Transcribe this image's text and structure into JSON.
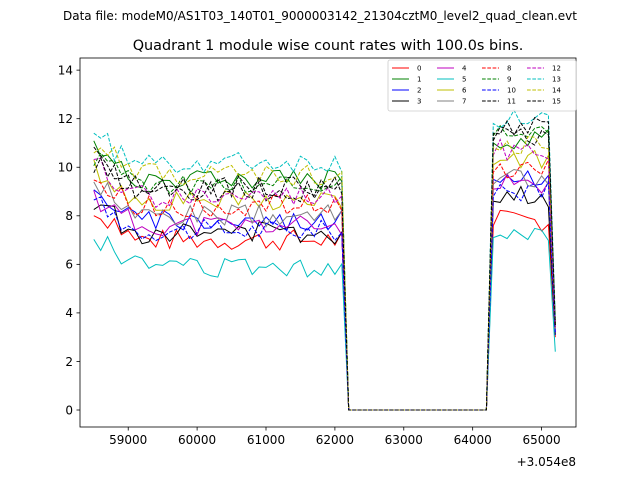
{
  "figure": {
    "suptitle": "Data file: modeM0/AS1T03_140T01_9000003142_21304cztM0_level2_quad_clean.evt",
    "title": "Quadrant 1 module wise count rates with 100.0s bins.",
    "offset_label": "+3.054e8"
  },
  "chart_data": {
    "type": "line",
    "title": "Quadrant 1 module wise count rates with 100.0s bins.",
    "xlabel": "",
    "ylabel": "",
    "x_offset": 305400000,
    "xlim": [
      58300,
      65500
    ],
    "ylim": [
      -0.7,
      14.5
    ],
    "xticks": [
      59000,
      60000,
      61000,
      62000,
      63000,
      64000,
      65000
    ],
    "yticks": [
      0,
      2,
      4,
      6,
      8,
      10,
      12,
      14
    ],
    "xtick_labels": [
      "59000",
      "60000",
      "61000",
      "62000",
      "63000",
      "64000",
      "65000"
    ],
    "ytick_labels": [
      "0",
      "2",
      "4",
      "6",
      "8",
      "10",
      "12",
      "14"
    ],
    "grid": false,
    "legend_position": "top-right",
    "legend_columns": 4,
    "segments": [
      {
        "x_start": 58500,
        "x_step": 100,
        "count": 38
      },
      {
        "x_start": 62200,
        "x_step": 100,
        "count": 21
      },
      {
        "x_start": 64300,
        "x_step": 100,
        "count": 10
      }
    ],
    "series": [
      {
        "name": "0",
        "color": "#ff0000",
        "dash": "solid",
        "baseline": 7.0,
        "late": 7.8,
        "final": 3.0
      },
      {
        "name": "1",
        "color": "#008000",
        "dash": "solid",
        "baseline": 9.5,
        "late": 11.2,
        "final": 3.5
      },
      {
        "name": "2",
        "color": "#0000ff",
        "dash": "solid",
        "baseline": 7.8,
        "late": 9.7,
        "final": 3.2
      },
      {
        "name": "3",
        "color": "#000000",
        "dash": "solid",
        "baseline": 7.3,
        "late": 8.8,
        "final": 3.1
      },
      {
        "name": "4",
        "color": "#bf00bf",
        "dash": "solid",
        "baseline": 7.6,
        "late": 9.3,
        "final": 3.2
      },
      {
        "name": "5",
        "color": "#00bfbf",
        "dash": "solid",
        "baseline": 5.9,
        "late": 7.3,
        "final": 2.4
      },
      {
        "name": "6",
        "color": "#bfbf00",
        "dash": "solid",
        "baseline": 8.6,
        "late": 10.3,
        "final": 3.5
      },
      {
        "name": "7",
        "color": "#808080",
        "dash": "solid",
        "baseline": 8.0,
        "late": 9.5,
        "final": 3.3
      },
      {
        "name": "8",
        "color": "#ff0000",
        "dash": "dashed",
        "baseline": 8.4,
        "late": 10.0,
        "final": 3.4
      },
      {
        "name": "9",
        "color": "#008000",
        "dash": "dashed",
        "baseline": 9.3,
        "late": 11.5,
        "final": 3.6
      },
      {
        "name": "10",
        "color": "#0000ff",
        "dash": "dashed",
        "baseline": 7.4,
        "late": 9.0,
        "final": 3.1
      },
      {
        "name": "11",
        "color": "#000000",
        "dash": "dashed",
        "baseline": 9.0,
        "late": 11.3,
        "final": 3.5
      },
      {
        "name": "12",
        "color": "#bf00bf",
        "dash": "dashed",
        "baseline": 8.8,
        "late": 10.7,
        "final": 3.5
      },
      {
        "name": "13",
        "color": "#00bfbf",
        "dash": "dashed",
        "baseline": 10.2,
        "late": 12.0,
        "final": 3.8
      },
      {
        "name": "14",
        "color": "#bfbf00",
        "dash": "dashed",
        "baseline": 9.7,
        "late": 11.0,
        "final": 3.6
      },
      {
        "name": "15",
        "color": "#000000",
        "dash": "dashed",
        "baseline": 9.2,
        "late": 11.6,
        "final": 3.5
      }
    ]
  }
}
